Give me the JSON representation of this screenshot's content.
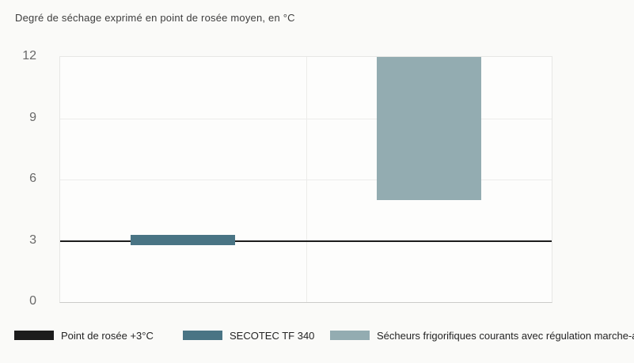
{
  "chart_data": {
    "type": "bar",
    "title": "Degré de séchage exprimé en point de rosée moyen, en °C",
    "xlabel": "",
    "ylabel": "",
    "ylim": [
      0,
      12
    ],
    "yticks": [
      0,
      3,
      6,
      9,
      12
    ],
    "grid": true,
    "legend_position": "bottom",
    "n_categories": 2,
    "bar_width_frac": 0.212,
    "series": [
      {
        "name": "Point de rosée +3°C",
        "mark": "reference-line",
        "value": 3,
        "color": "#1c1c1c"
      },
      {
        "name": "SECOTEC TF 340",
        "mark": "range-bar",
        "category": 0,
        "low": 2.8,
        "high": 3.3,
        "color": "#497484"
      },
      {
        "name": "Sécheurs frigorifiques courants avec régulation marche-arrêt",
        "mark": "range-bar",
        "category": 1,
        "low": 5,
        "high": 12,
        "color": "#93acb1"
      }
    ]
  }
}
